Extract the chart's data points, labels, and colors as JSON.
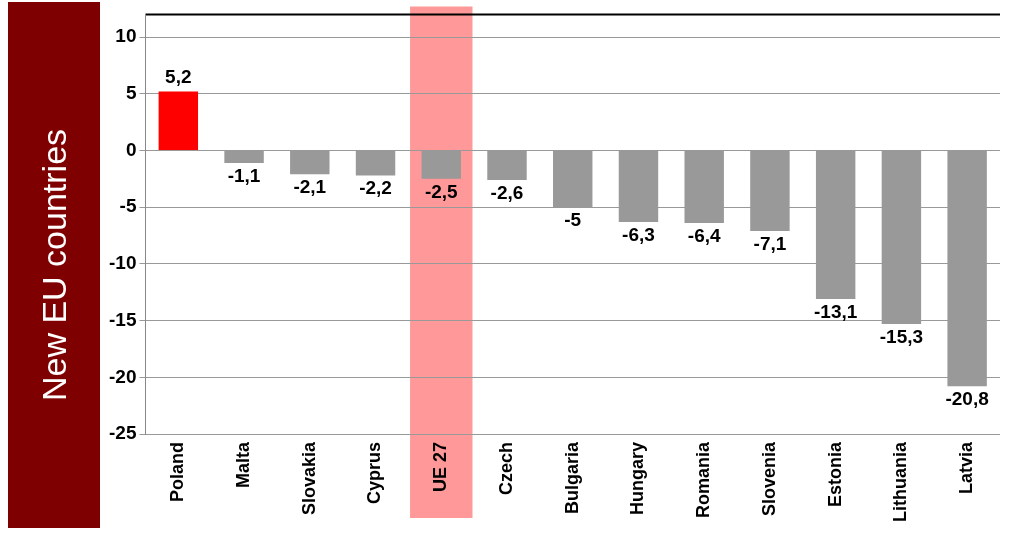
{
  "chart_data": {
    "type": "bar",
    "ylabel": "New EU countries",
    "categories": [
      "Poland",
      "Malta",
      "Slovakia",
      "Cyprus",
      "UE 27",
      "Czech",
      "Bulgaria",
      "Hungary",
      "Romania",
      "Slovenia",
      "Estonia",
      "Lithuania",
      "Latvia"
    ],
    "values": [
      5.2,
      -1.1,
      -2.1,
      -2.2,
      -2.5,
      -2.6,
      -5,
      -6.3,
      -6.4,
      -7.1,
      -13.1,
      -15.3,
      -20.8
    ],
    "colors": [
      "#ff0000",
      "#999999",
      "#999999",
      "#999999",
      "#999999",
      "#999999",
      "#999999",
      "#999999",
      "#999999",
      "#999999",
      "#999999",
      "#999999",
      "#999999"
    ],
    "value_labels": [
      "5,2",
      "-1,1",
      "-2,1",
      "-2,2",
      "-2,5",
      "-2,6",
      "-5",
      "-6,3",
      "-6,4",
      "-7,1",
      "-13,1",
      "-15,3",
      "-20,8"
    ],
    "ylim": [
      -25,
      12
    ],
    "yticks": [
      -25,
      -20,
      -15,
      -10,
      -5,
      0,
      5,
      10
    ],
    "grid": "y",
    "legend": false,
    "bands": [
      {
        "axis": "x",
        "from": "UE 27",
        "to": "UE 27",
        "color": "#ff9999"
      }
    ]
  }
}
